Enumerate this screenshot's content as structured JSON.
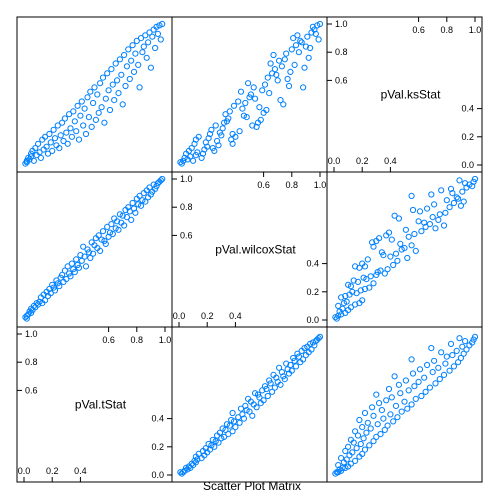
{
  "chart_data": {
    "type": "scatter",
    "layout": "scatter-plot-matrix",
    "xlabel": "Scatter Plot Matrix",
    "variables": [
      "pVal.tStat",
      "pVal.wilcoxStat",
      "pVal.ksStat"
    ],
    "ticks": {
      "low": [
        0.0,
        0.2,
        0.4
      ],
      "high": [
        0.6,
        0.8,
        1.0
      ]
    },
    "tick_labels": {
      "low": [
        "0.0",
        "0.2",
        "0.4"
      ],
      "high": [
        "0.6",
        "0.8",
        "1.0"
      ]
    },
    "axis_range": [
      0,
      1
    ],
    "marker_color": "#0080ff",
    "n_points": 100,
    "pairs": [
      {
        "x": "pVal.tStat",
        "y": "pVal.wilcoxStat"
      },
      {
        "x": "pVal.tStat",
        "y": "pVal.ksStat"
      },
      {
        "x": "pVal.wilcoxStat",
        "y": "pVal.ksStat"
      }
    ],
    "points": {
      "tStat": [
        0.01,
        0.02,
        0.02,
        0.03,
        0.04,
        0.05,
        0.05,
        0.06,
        0.07,
        0.08,
        0.09,
        0.1,
        0.11,
        0.12,
        0.13,
        0.14,
        0.15,
        0.16,
        0.17,
        0.18,
        0.19,
        0.2,
        0.21,
        0.22,
        0.23,
        0.24,
        0.25,
        0.26,
        0.27,
        0.28,
        0.29,
        0.3,
        0.31,
        0.32,
        0.33,
        0.34,
        0.35,
        0.36,
        0.37,
        0.38,
        0.39,
        0.4,
        0.41,
        0.42,
        0.43,
        0.44,
        0.45,
        0.46,
        0.47,
        0.48,
        0.49,
        0.5,
        0.51,
        0.52,
        0.53,
        0.54,
        0.55,
        0.56,
        0.57,
        0.58,
        0.59,
        0.6,
        0.61,
        0.62,
        0.63,
        0.64,
        0.65,
        0.66,
        0.67,
        0.68,
        0.69,
        0.7,
        0.71,
        0.72,
        0.73,
        0.74,
        0.75,
        0.76,
        0.77,
        0.78,
        0.79,
        0.8,
        0.81,
        0.82,
        0.83,
        0.84,
        0.85,
        0.86,
        0.87,
        0.88,
        0.89,
        0.9,
        0.91,
        0.92,
        0.93,
        0.94,
        0.95,
        0.96,
        0.97,
        0.98
      ],
      "wilcoxStat": [
        0.02,
        0.03,
        0.01,
        0.04,
        0.06,
        0.05,
        0.08,
        0.07,
        0.1,
        0.09,
        0.12,
        0.11,
        0.13,
        0.16,
        0.12,
        0.18,
        0.14,
        0.2,
        0.17,
        0.22,
        0.19,
        0.25,
        0.23,
        0.21,
        0.28,
        0.26,
        0.24,
        0.3,
        0.32,
        0.27,
        0.35,
        0.29,
        0.38,
        0.33,
        0.31,
        0.4,
        0.36,
        0.34,
        0.43,
        0.39,
        0.37,
        0.46,
        0.42,
        0.52,
        0.45,
        0.38,
        0.5,
        0.48,
        0.44,
        0.55,
        0.47,
        0.53,
        0.58,
        0.51,
        0.6,
        0.49,
        0.57,
        0.63,
        0.56,
        0.54,
        0.66,
        0.59,
        0.62,
        0.68,
        0.61,
        0.72,
        0.65,
        0.7,
        0.64,
        0.75,
        0.69,
        0.74,
        0.67,
        0.78,
        0.73,
        0.8,
        0.77,
        0.71,
        0.83,
        0.79,
        0.76,
        0.86,
        0.82,
        0.88,
        0.81,
        0.85,
        0.9,
        0.84,
        0.92,
        0.87,
        0.94,
        0.89,
        0.91,
        0.96,
        0.93,
        0.95,
        0.97,
        0.98,
        0.99,
        1.0
      ],
      "ksStat": [
        0.01,
        0.03,
        0.02,
        0.05,
        0.04,
        0.08,
        0.06,
        0.1,
        0.03,
        0.12,
        0.07,
        0.15,
        0.09,
        0.05,
        0.18,
        0.11,
        0.2,
        0.13,
        0.08,
        0.22,
        0.16,
        0.1,
        0.25,
        0.19,
        0.14,
        0.28,
        0.12,
        0.21,
        0.3,
        0.17,
        0.33,
        0.23,
        0.15,
        0.36,
        0.26,
        0.2,
        0.38,
        0.31,
        0.24,
        0.42,
        0.18,
        0.35,
        0.45,
        0.28,
        0.4,
        0.22,
        0.48,
        0.34,
        0.52,
        0.27,
        0.44,
        0.55,
        0.32,
        0.5,
        0.37,
        0.58,
        0.41,
        0.62,
        0.3,
        0.47,
        0.65,
        0.53,
        0.39,
        0.68,
        0.57,
        0.46,
        0.72,
        0.6,
        0.51,
        0.75,
        0.64,
        0.43,
        0.78,
        0.56,
        0.7,
        0.82,
        0.61,
        0.74,
        0.85,
        0.66,
        0.79,
        0.88,
        0.71,
        0.55,
        0.9,
        0.8,
        0.84,
        0.92,
        0.76,
        0.87,
        0.94,
        0.69,
        0.91,
        0.96,
        0.83,
        0.98,
        0.93,
        0.99,
        0.89,
        1.0
      ]
    }
  }
}
